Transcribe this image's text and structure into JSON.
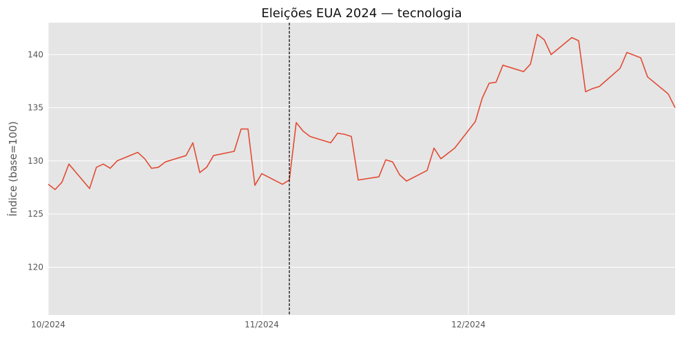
{
  "chart_data": {
    "type": "line",
    "title": "Eleições EUA 2024 — tecnologia",
    "xlabel": "",
    "ylabel": "Índice (base=100)",
    "x_ticks": [
      {
        "date": "2024-10-01",
        "label": "10/2024"
      },
      {
        "date": "2024-11-01",
        "label": "11/2024"
      },
      {
        "date": "2024-12-01",
        "label": "12/2024"
      }
    ],
    "y_ticks": [
      120,
      125,
      130,
      135,
      140
    ],
    "xlim": [
      "2024-10-01",
      "2024-12-31"
    ],
    "ylim": [
      115.5,
      143.0
    ],
    "grid": true,
    "background": "#e5e5e5",
    "line_color": "#e24a33",
    "event_line": {
      "date": "2024-11-05",
      "style": "dashed",
      "color": "#000000"
    },
    "series": [
      {
        "x": [
          "2024-10-01",
          "2024-10-02",
          "2024-10-03",
          "2024-10-04",
          "2024-10-07",
          "2024-10-08",
          "2024-10-09",
          "2024-10-10",
          "2024-10-11",
          "2024-10-14",
          "2024-10-15",
          "2024-10-16",
          "2024-10-17",
          "2024-10-18",
          "2024-10-21",
          "2024-10-22",
          "2024-10-23",
          "2024-10-24",
          "2024-10-25",
          "2024-10-28",
          "2024-10-29",
          "2024-10-30",
          "2024-10-31",
          "2024-11-01",
          "2024-11-04",
          "2024-11-05",
          "2024-11-06",
          "2024-11-07",
          "2024-11-08",
          "2024-11-11",
          "2024-11-12",
          "2024-11-13",
          "2024-11-14",
          "2024-11-15",
          "2024-11-18",
          "2024-11-19",
          "2024-11-20",
          "2024-11-21",
          "2024-11-22",
          "2024-11-25",
          "2024-11-26",
          "2024-11-27",
          "2024-11-29",
          "2024-12-02",
          "2024-12-03",
          "2024-12-04",
          "2024-12-05",
          "2024-12-06",
          "2024-12-09",
          "2024-12-10",
          "2024-12-11",
          "2024-12-12",
          "2024-12-13",
          "2024-12-16",
          "2024-12-17",
          "2024-12-18",
          "2024-12-19",
          "2024-12-20",
          "2024-12-23",
          "2024-12-24",
          "2024-12-26",
          "2024-12-27",
          "2024-12-30",
          "2024-12-31"
        ],
        "values": [
          127.8,
          127.3,
          128.0,
          129.7,
          127.4,
          129.4,
          129.7,
          129.3,
          130.0,
          130.8,
          130.2,
          129.3,
          129.4,
          129.9,
          130.5,
          131.7,
          128.9,
          129.4,
          130.5,
          130.9,
          133.0,
          133.0,
          127.7,
          128.8,
          127.8,
          128.2,
          133.6,
          132.8,
          132.3,
          131.7,
          132.6,
          132.5,
          132.3,
          128.2,
          128.5,
          130.1,
          129.9,
          128.7,
          128.1,
          129.1,
          131.2,
          130.2,
          131.2,
          133.7,
          135.9,
          137.3,
          137.4,
          139.0,
          138.4,
          139.1,
          141.9,
          141.4,
          140.0,
          141.6,
          141.3,
          136.5,
          136.8,
          137.0,
          138.7,
          140.2,
          139.7,
          137.9,
          136.3,
          135.0
        ]
      }
    ]
  }
}
